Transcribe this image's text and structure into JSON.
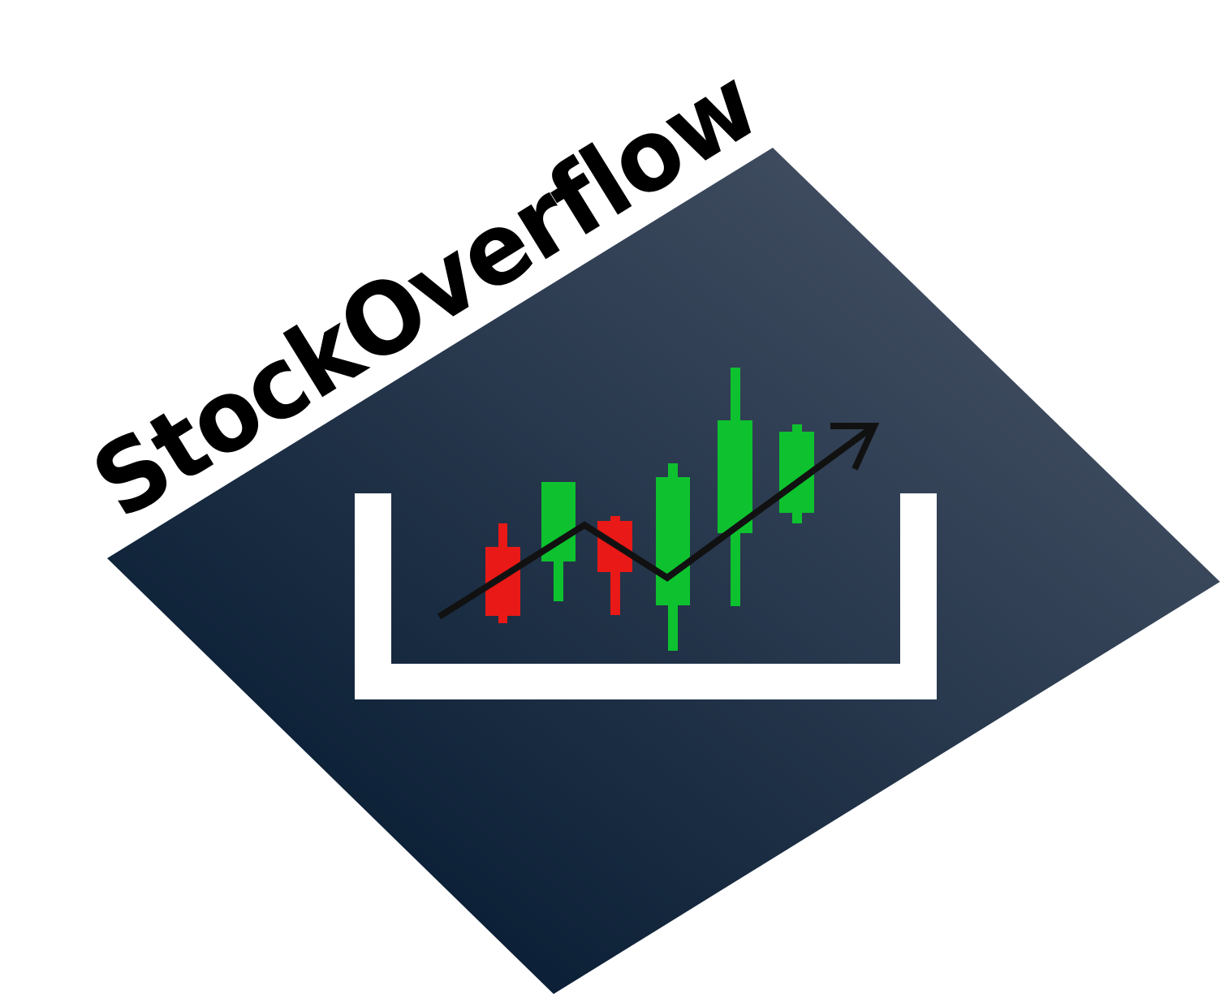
{
  "logo": {
    "brand_name": "StockOverflow",
    "icon": "candlestick-chart-trend-up-icon",
    "colors": {
      "background_gradient_dark": "#071c33",
      "background_gradient_light": "#4b5669",
      "text": "#000000",
      "container": "#ffffff",
      "candle_bullish": "#0dc22e",
      "candle_bearish": "#e81916",
      "trend_line": "#111111"
    }
  }
}
